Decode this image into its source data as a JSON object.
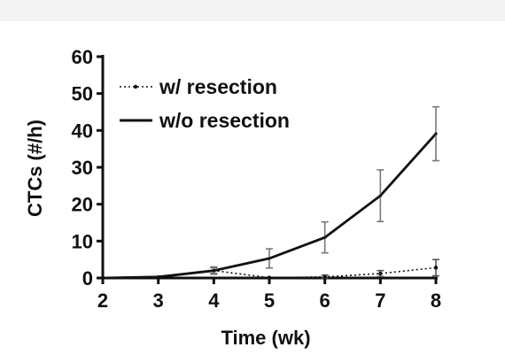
{
  "chart_data": {
    "type": "line",
    "title": "",
    "xlabel": "Time (wk)",
    "ylabel": "CTCs (#/h)",
    "x": [
      2,
      3,
      4,
      5,
      6,
      7,
      8
    ],
    "xticks": [
      "2",
      "3",
      "4",
      "5",
      "6",
      "7",
      "8"
    ],
    "yticks": [
      "0",
      "10",
      "20",
      "30",
      "40",
      "50",
      "60"
    ],
    "xlim": [
      2,
      8
    ],
    "ylim": [
      0,
      60
    ],
    "grid": false,
    "legend_position": "top-left",
    "series": [
      {
        "name": "w/ resection",
        "style": "dotted",
        "color": "#111111",
        "values": [
          0,
          0.2,
          2.0,
          0.1,
          0.3,
          1.2,
          2.8
        ],
        "errors": [
          0,
          0,
          0.8,
          0,
          0.5,
          0.8,
          2.2
        ]
      },
      {
        "name": "w/o resection",
        "style": "solid",
        "color": "#111111",
        "values": [
          0,
          0.3,
          2.0,
          5.3,
          11.0,
          22.3,
          39.1
        ],
        "errors": [
          0,
          0,
          1.0,
          2.6,
          4.2,
          7.0,
          7.3
        ]
      }
    ]
  }
}
